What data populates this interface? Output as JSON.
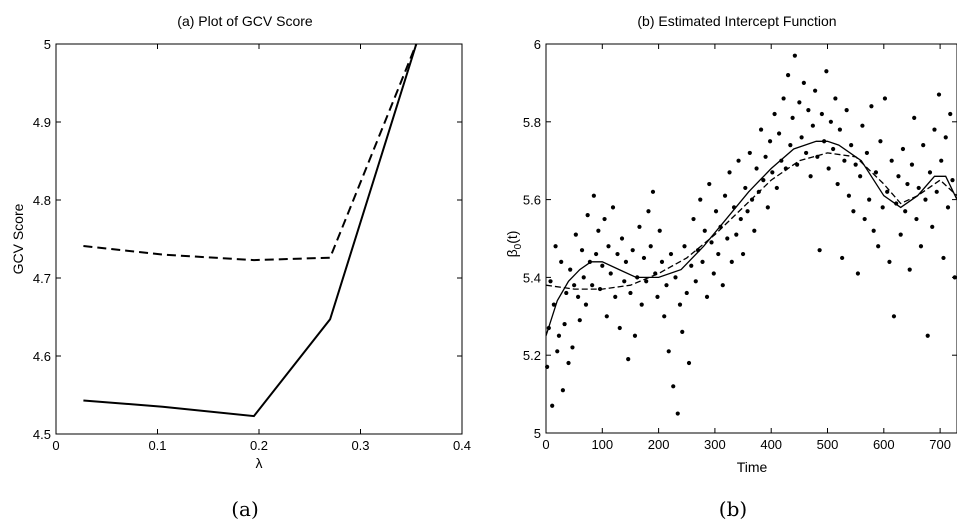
{
  "chart_data": [
    {
      "type": "line",
      "title": "(a) Plot of GCV Score",
      "xlabel": "λ",
      "ylabel": "GCV Score",
      "xlim": [
        0,
        0.4
      ],
      "ylim": [
        4.5,
        5
      ],
      "xticks": [
        "0",
        "0.1",
        "0.2",
        "0.3",
        "0.4"
      ],
      "yticks": [
        "4.5",
        "4.6",
        "4.7",
        "4.8",
        "4.9",
        "5"
      ],
      "grid": false,
      "caption": "(a)",
      "series": [
        {
          "style": "solid",
          "x": [
            0.027,
            0.105,
            0.195,
            0.27,
            0.355
          ],
          "y": [
            4.543,
            4.535,
            4.523,
            4.647,
            5.0
          ]
        },
        {
          "style": "dashed",
          "x": [
            0.027,
            0.105,
            0.195,
            0.27,
            0.355
          ],
          "y": [
            4.741,
            4.73,
            4.723,
            4.726,
            5.0
          ]
        }
      ]
    },
    {
      "type": "scatter",
      "title": "(b) Estimated Intercept Function",
      "xlabel": "Time",
      "ylabel": "β",
      "ylabel_sub": "0",
      "ylabel_tail": "(t)",
      "xlim": [
        0,
        730
      ],
      "ylim": [
        5,
        6
      ],
      "xticks": [
        "0",
        "100",
        "200",
        "300",
        "400",
        "500",
        "600",
        "700"
      ],
      "yticks": [
        "5",
        "5.2",
        "5.4",
        "5.6",
        "5.8",
        "6"
      ],
      "grid": false,
      "caption": "(b)",
      "scatter_points": [
        [
          2,
          5.17
        ],
        [
          5,
          5.27
        ],
        [
          8,
          5.39
        ],
        [
          11,
          5.07
        ],
        [
          14,
          5.33
        ],
        [
          17,
          5.48
        ],
        [
          20,
          5.21
        ],
        [
          23,
          5.25
        ],
        [
          27,
          5.44
        ],
        [
          30,
          5.11
        ],
        [
          33,
          5.28
        ],
        [
          36,
          5.36
        ],
        [
          40,
          5.18
        ],
        [
          43,
          5.42
        ],
        [
          47,
          5.22
        ],
        [
          50,
          5.38
        ],
        [
          53,
          5.51
        ],
        [
          57,
          5.35
        ],
        [
          60,
          5.29
        ],
        [
          64,
          5.47
        ],
        [
          67,
          5.4
        ],
        [
          71,
          5.33
        ],
        [
          74,
          5.56
        ],
        [
          78,
          5.44
        ],
        [
          82,
          5.38
        ],
        [
          85,
          5.61
        ],
        [
          89,
          5.46
        ],
        [
          93,
          5.52
        ],
        [
          96,
          5.37
        ],
        [
          100,
          5.43
        ],
        [
          104,
          5.55
        ],
        [
          108,
          5.3
        ],
        [
          111,
          5.48
        ],
        [
          115,
          5.41
        ],
        [
          119,
          5.58
        ],
        [
          123,
          5.35
        ],
        [
          127,
          5.46
        ],
        [
          131,
          5.27
        ],
        [
          135,
          5.5
        ],
        [
          139,
          5.39
        ],
        [
          142,
          5.44
        ],
        [
          146,
          5.19
        ],
        [
          150,
          5.36
        ],
        [
          154,
          5.47
        ],
        [
          158,
          5.25
        ],
        [
          162,
          5.4
        ],
        [
          166,
          5.53
        ],
        [
          170,
          5.33
        ],
        [
          174,
          5.45
        ],
        [
          178,
          5.39
        ],
        [
          182,
          5.57
        ],
        [
          186,
          5.48
        ],
        [
          190,
          5.62
        ],
        [
          194,
          5.41
        ],
        [
          198,
          5.35
        ],
        [
          202,
          5.52
        ],
        [
          206,
          5.44
        ],
        [
          210,
          5.3
        ],
        [
          214,
          5.38
        ],
        [
          218,
          5.21
        ],
        [
          222,
          5.46
        ],
        [
          226,
          5.12
        ],
        [
          230,
          5.4
        ],
        [
          234,
          5.05
        ],
        [
          238,
          5.33
        ],
        [
          242,
          5.26
        ],
        [
          246,
          5.48
        ],
        [
          250,
          5.36
        ],
        [
          254,
          5.18
        ],
        [
          258,
          5.43
        ],
        [
          262,
          5.55
        ],
        [
          266,
          5.39
        ],
        [
          270,
          5.47
        ],
        [
          274,
          5.6
        ],
        [
          278,
          5.44
        ],
        [
          282,
          5.52
        ],
        [
          286,
          5.35
        ],
        [
          290,
          5.64
        ],
        [
          294,
          5.49
        ],
        [
          298,
          5.41
        ],
        [
          302,
          5.57
        ],
        [
          306,
          5.46
        ],
        [
          310,
          5.53
        ],
        [
          314,
          5.38
        ],
        [
          318,
          5.61
        ],
        [
          322,
          5.5
        ],
        [
          326,
          5.67
        ],
        [
          330,
          5.44
        ],
        [
          334,
          5.58
        ],
        [
          338,
          5.51
        ],
        [
          342,
          5.7
        ],
        [
          346,
          5.55
        ],
        [
          350,
          5.46
        ],
        [
          354,
          5.63
        ],
        [
          358,
          5.57
        ],
        [
          362,
          5.72
        ],
        [
          366,
          5.6
        ],
        [
          370,
          5.52
        ],
        [
          374,
          5.68
        ],
        [
          378,
          5.62
        ],
        [
          382,
          5.78
        ],
        [
          386,
          5.65
        ],
        [
          390,
          5.71
        ],
        [
          394,
          5.58
        ],
        [
          398,
          5.75
        ],
        [
          402,
          5.67
        ],
        [
          406,
          5.82
        ],
        [
          410,
          5.63
        ],
        [
          414,
          5.77
        ],
        [
          418,
          5.7
        ],
        [
          422,
          5.86
        ],
        [
          426,
          5.68
        ],
        [
          430,
          5.92
        ],
        [
          434,
          5.74
        ],
        [
          438,
          5.81
        ],
        [
          442,
          5.97
        ],
        [
          446,
          5.69
        ],
        [
          450,
          5.85
        ],
        [
          454,
          5.76
        ],
        [
          458,
          5.9
        ],
        [
          462,
          5.72
        ],
        [
          466,
          5.83
        ],
        [
          470,
          5.66
        ],
        [
          474,
          5.79
        ],
        [
          478,
          5.88
        ],
        [
          482,
          5.71
        ],
        [
          486,
          5.47
        ],
        [
          490,
          5.82
        ],
        [
          494,
          5.75
        ],
        [
          498,
          5.93
        ],
        [
          502,
          5.68
        ],
        [
          506,
          5.8
        ],
        [
          510,
          5.73
        ],
        [
          514,
          5.86
        ],
        [
          518,
          5.64
        ],
        [
          522,
          5.78
        ],
        [
          526,
          5.45
        ],
        [
          530,
          5.7
        ],
        [
          534,
          5.83
        ],
        [
          538,
          5.61
        ],
        [
          542,
          5.74
        ],
        [
          546,
          5.57
        ],
        [
          550,
          5.69
        ],
        [
          554,
          5.41
        ],
        [
          558,
          5.66
        ],
        [
          562,
          5.79
        ],
        [
          566,
          5.55
        ],
        [
          570,
          5.72
        ],
        [
          574,
          5.6
        ],
        [
          578,
          5.84
        ],
        [
          582,
          5.52
        ],
        [
          586,
          5.67
        ],
        [
          590,
          5.48
        ],
        [
          594,
          5.75
        ],
        [
          598,
          5.58
        ],
        [
          602,
          5.86
        ],
        [
          606,
          5.62
        ],
        [
          610,
          5.44
        ],
        [
          614,
          5.7
        ],
        [
          618,
          5.3
        ],
        [
          622,
          5.59
        ],
        [
          626,
          5.66
        ],
        [
          630,
          5.51
        ],
        [
          634,
          5.73
        ],
        [
          638,
          5.57
        ],
        [
          642,
          5.64
        ],
        [
          646,
          5.42
        ],
        [
          650,
          5.69
        ],
        [
          654,
          5.81
        ],
        [
          658,
          5.55
        ],
        [
          662,
          5.63
        ],
        [
          666,
          5.48
        ],
        [
          670,
          5.74
        ],
        [
          674,
          5.6
        ],
        [
          678,
          5.25
        ],
        [
          682,
          5.67
        ],
        [
          686,
          5.53
        ],
        [
          690,
          5.78
        ],
        [
          694,
          5.62
        ],
        [
          698,
          5.87
        ],
        [
          702,
          5.7
        ],
        [
          706,
          5.45
        ],
        [
          710,
          5.76
        ],
        [
          714,
          5.58
        ],
        [
          718,
          5.82
        ],
        [
          722,
          5.65
        ],
        [
          726,
          5.4
        ]
      ],
      "series": [
        {
          "style": "solid",
          "x": [
            0,
            20,
            40,
            60,
            80,
            100,
            130,
            160,
            200,
            240,
            280,
            320,
            360,
            400,
            440,
            480,
            500,
            520,
            560,
            600,
            630,
            660,
            690,
            710,
            730
          ],
          "y": [
            5.25,
            5.34,
            5.39,
            5.42,
            5.44,
            5.44,
            5.42,
            5.4,
            5.4,
            5.42,
            5.48,
            5.55,
            5.62,
            5.68,
            5.73,
            5.75,
            5.75,
            5.74,
            5.7,
            5.61,
            5.58,
            5.61,
            5.66,
            5.66,
            5.6
          ]
        },
        {
          "style": "dashed",
          "x": [
            0,
            50,
            100,
            150,
            200,
            250,
            300,
            350,
            400,
            450,
            500,
            550,
            600,
            630,
            660,
            700,
            730
          ],
          "y": [
            5.38,
            5.37,
            5.37,
            5.38,
            5.41,
            5.45,
            5.51,
            5.58,
            5.65,
            5.7,
            5.72,
            5.71,
            5.64,
            5.59,
            5.61,
            5.65,
            5.61
          ]
        }
      ]
    }
  ]
}
